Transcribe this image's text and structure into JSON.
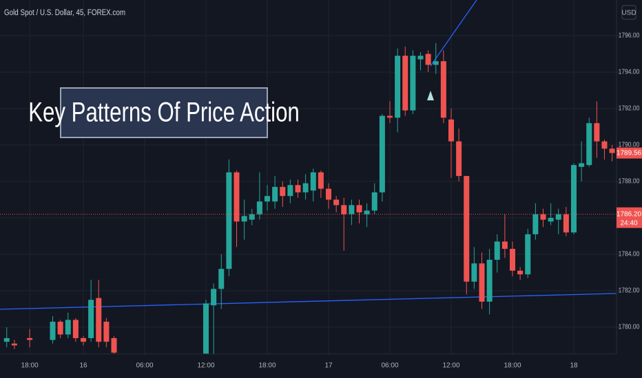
{
  "chart_data": {
    "type": "candlestick",
    "title": "Gold Spot / U.S. Dollar, 45, FOREX.com",
    "currency": "USD",
    "annotation": "Key Patterns Of Price Action",
    "up_color": "#26a69a",
    "down_color": "#ef5350",
    "categories": [
      null,
      null,
      null,
      "18:00",
      null,
      null,
      null,
      null,
      null,
      null,
      "16",
      null,
      null,
      null,
      null,
      null,
      null,
      null,
      "06:00",
      null,
      null,
      null,
      null,
      null,
      null,
      null,
      "12:00",
      null,
      null,
      null,
      null,
      null,
      null,
      null,
      "18:00",
      null,
      null,
      null,
      null,
      null,
      null,
      null,
      "17",
      null,
      null,
      null,
      null,
      null,
      null,
      null,
      "06:00",
      null,
      null,
      null,
      null,
      null,
      null,
      null,
      "12:00",
      null,
      null,
      null,
      null,
      null,
      null,
      null,
      "18:00",
      null,
      null,
      null,
      null,
      null,
      null,
      null,
      "18",
      null,
      null,
      null,
      null,
      null
    ],
    "open": [
      1779.2,
      1779.1,
      null,
      1779.4,
      null,
      null,
      1779.3,
      1780.3,
      1779.6,
      1780.4,
      1779.4,
      1779.4,
      1781.6,
      1780.3,
      1779.4,
      null,
      null,
      null,
      null,
      null,
      null,
      null,
      null,
      null,
      null,
      null,
      1778.0,
      1781.2,
      1782.1,
      1783.2,
      1788.5,
      1785.8,
      1785.9,
      1786.2,
      1786.9,
      1786.9,
      1787.7,
      1787.2,
      1787.8,
      1787.4,
      1787.5,
      1788.5,
      1787.6,
      1787.0,
      1786.7,
      1786.2,
      1786.7,
      1786.2,
      1786.4,
      1787.4,
      1791.6,
      1791.5,
      1794.9,
      1791.9,
      1794.7,
      1795.0,
      1794.4,
      1794.6,
      1791.4,
      1790.2,
      1788.3,
      1782.5,
      1783.5,
      1781.4,
      1783.7,
      1784.7,
      1784.3,
      1783.1,
      1782.9,
      1785.1,
      1786.2,
      1785.8,
      1785.9,
      1786.2,
      1785.2,
      1788.8,
      1788.9,
      1791.2,
      1790.2,
      1789.8
    ],
    "high": [
      1780.0,
      1779.3,
      null,
      1779.9,
      null,
      null,
      1780.6,
      1780.4,
      1780.8,
      1780.5,
      1779.5,
      1782.6,
      1782.6,
      1780.5,
      1779.5,
      null,
      null,
      null,
      null,
      null,
      null,
      null,
      null,
      null,
      null,
      null,
      1781.5,
      1782.4,
      1784.0,
      1789.2,
      1788.6,
      1787.0,
      1786.5,
      1788.5,
      1787.8,
      1788.3,
      1788.0,
      1788.1,
      1788.1,
      1788.4,
      1788.7,
      1788.6,
      1787.9,
      1787.2,
      1787.1,
      1787.0,
      1787.0,
      1786.8,
      1787.9,
      1791.7,
      1792.4,
      1795.3,
      1795.4,
      1795.2,
      1795.1,
      1795.2,
      1795.6,
      1795.2,
      1792.0,
      1790.9,
      1788.3,
      1784.4,
      1784.1,
      1784.3,
      1785.1,
      1786.2,
      1784.7,
      1783.3,
      1785.4,
      1786.8,
      1786.5,
      1786.8,
      1786.5,
      1786.6,
      1789.0,
      1790.2,
      1791.5,
      1792.4,
      1790.3,
      1790.0
    ],
    "low": [
      1778.9,
      1778.8,
      null,
      1778.9,
      null,
      null,
      1779.1,
      1779.4,
      1779.4,
      1779.2,
      1779.0,
      1779.2,
      1778.9,
      1778.9,
      1778.4,
      null,
      null,
      null,
      null,
      null,
      null,
      null,
      null,
      null,
      null,
      null,
      1777.9,
      1778.0,
      1781.0,
      1782.8,
      1784.4,
      1784.8,
      1785.6,
      1785.9,
      1786.4,
      1786.5,
      1786.6,
      1786.8,
      1787.1,
      1787.0,
      1786.9,
      1787.1,
      1786.5,
      1786.3,
      1784.2,
      1785.6,
      1785.7,
      1785.5,
      1786.2,
      1786.9,
      1791.2,
      1790.7,
      1791.6,
      1791.7,
      1794.1,
      1794.0,
      1793.9,
      1791.2,
      1788.2,
      1788.0,
      1781.8,
      1782.1,
      1781.0,
      1780.7,
      1783.0,
      1783.8,
      1782.8,
      1782.6,
      1782.7,
      1784.8,
      1785.5,
      1785.6,
      1785.1,
      1785.0,
      1785.1,
      1788.0,
      1788.8,
      1789.3,
      1789.2,
      1789.1
    ],
    "close": [
      1779.4,
      1779.0,
      null,
      1779.3,
      null,
      null,
      1780.3,
      1779.6,
      1780.4,
      1779.4,
      1779.2,
      1781.5,
      1779.2,
      1779.2,
      1778.6,
      null,
      null,
      null,
      null,
      null,
      null,
      null,
      null,
      null,
      null,
      null,
      1781.3,
      1782.1,
      1783.2,
      1788.5,
      1785.8,
      1786.1,
      1786.2,
      1786.9,
      1787.2,
      1787.7,
      1787.2,
      1787.8,
      1787.4,
      1787.9,
      1788.5,
      1787.6,
      1787.0,
      1786.7,
      1786.2,
      1786.7,
      1786.3,
      1786.4,
      1787.4,
      1791.6,
      1791.5,
      1794.9,
      1791.9,
      1794.9,
      1794.9,
      1794.4,
      1794.6,
      1791.5,
      1790.2,
      1788.3,
      1782.5,
      1783.5,
      1781.4,
      1783.7,
      1784.7,
      1784.3,
      1783.1,
      1782.9,
      1785.1,
      1786.2,
      1785.9,
      1786.0,
      1786.2,
      1785.2,
      1788.9,
      1789.0,
      1791.2,
      1790.2,
      1789.8,
      1789.56
    ],
    "ylim": [
      1778.53,
      1797.96
    ],
    "yticks": [
      {
        "value": 1780,
        "label": "1780.00"
      },
      {
        "value": 1782,
        "label": "1782.00"
      },
      {
        "value": 1784,
        "label": "1784.00"
      },
      {
        "value": 1786,
        "label": "1786.00"
      },
      {
        "value": 1788,
        "label": "1788.00"
      },
      {
        "value": 1790,
        "label": "1790.00"
      },
      {
        "value": 1792,
        "label": "1792.00"
      },
      {
        "value": 1794,
        "label": "1794.00"
      },
      {
        "value": 1796,
        "label": "1796.00"
      }
    ],
    "grid": true,
    "last_price": 1789.56,
    "reference_price": {
      "value": 1786.2,
      "label": "1786.20"
    },
    "countdown": "24:40"
  }
}
